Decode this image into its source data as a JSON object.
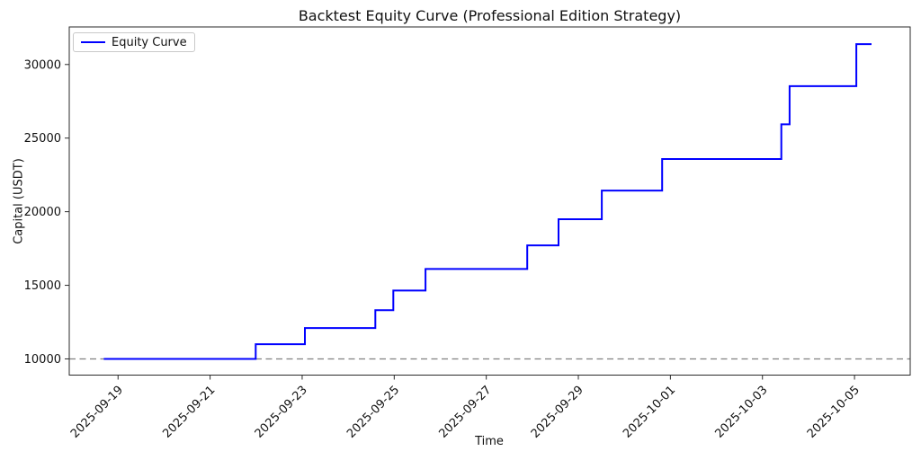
{
  "figure": {
    "title": "Backtest Equity Curve (Professional Edition Strategy)",
    "xlabel": "Time",
    "ylabel": "Capital (USDT)"
  },
  "legend": {
    "label": "Equity Curve"
  },
  "chart_data": {
    "type": "line",
    "step_mode": "post",
    "title": "Backtest Equity Curve (Professional Edition Strategy)",
    "xlabel": "Time",
    "ylabel": "Capital (USDT)",
    "grid": false,
    "legend_entries": [
      "Equity Curve"
    ],
    "legend_position": "upper left",
    "reference_line": {
      "value": 10000,
      "color": "#808080",
      "style": "dashed"
    },
    "axis_color": "#2a2a2a",
    "y_ticks": [
      10000,
      15000,
      20000,
      25000,
      30000
    ],
    "y_tick_labels": [
      "10000",
      "15000",
      "20000",
      "25000",
      "30000"
    ],
    "ylim": [
      8900,
      32550
    ],
    "x_tick_labels": [
      "2025-09-19",
      "2025-09-21",
      "2025-09-23",
      "2025-09-25",
      "2025-09-27",
      "2025-09-29",
      "2025-10-01",
      "2025-10-03",
      "2025-10-05"
    ],
    "x_tick_days": [
      0,
      2,
      4,
      6,
      8,
      10,
      12,
      14,
      16
    ],
    "x_epoch": "2025-09-19 00:00",
    "xlim_days": [
      -1.06,
      17.21
    ],
    "series": [
      {
        "name": "Equity Curve",
        "color": "#0000ff",
        "points": [
          {
            "time": "2025-09-18 17:00",
            "day": -0.31,
            "value": 10000
          },
          {
            "time": "2025-09-22 00:00",
            "day": 2.99,
            "value": 11000
          },
          {
            "time": "2025-09-23 01:30",
            "day": 4.06,
            "value": 12100
          },
          {
            "time": "2025-09-24 14:00",
            "day": 5.59,
            "value": 13310
          },
          {
            "time": "2025-09-25 00:00",
            "day": 5.98,
            "value": 14641
          },
          {
            "time": "2025-09-25 16:30",
            "day": 6.68,
            "value": 16105
          },
          {
            "time": "2025-09-27 21:30",
            "day": 8.89,
            "value": 17716
          },
          {
            "time": "2025-09-28 13:30",
            "day": 9.57,
            "value": 19487
          },
          {
            "time": "2025-09-29 12:00",
            "day": 10.51,
            "value": 21436
          },
          {
            "time": "2025-09-30 19:30",
            "day": 11.82,
            "value": 23579
          },
          {
            "time": "2025-10-03 10:00",
            "day": 14.41,
            "value": 25937
          },
          {
            "time": "2025-10-03 14:00",
            "day": 14.59,
            "value": 28531
          },
          {
            "time": "2025-10-05 01:00",
            "day": 16.04,
            "value": 31384
          },
          {
            "time": "2025-10-05 09:00",
            "day": 16.37,
            "value": 31384
          }
        ]
      }
    ]
  }
}
